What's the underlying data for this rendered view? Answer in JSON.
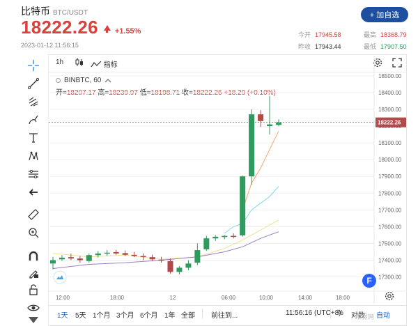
{
  "header": {
    "coin_name": "比特币",
    "pair": "BTC/USDT",
    "price": "18222.26",
    "change_pct": "+1.55%",
    "timestamp": "2023-01-12 11:56:15",
    "add_button": "+ 加自选",
    "stats": [
      {
        "label": "今开",
        "value": "17945.58",
        "color": "red"
      },
      {
        "label": "最高",
        "value": "18368.79",
        "color": "red"
      },
      {
        "label": "昨收",
        "value": "17943.44",
        "color": "plain"
      },
      {
        "label": "最低",
        "value": "17907.50",
        "color": "green"
      }
    ]
  },
  "toolbar_top": {
    "interval": "1h",
    "indicators_label": "指标"
  },
  "legend": {
    "symbol": "BINBTC, 60",
    "ohlc_prefix_open": "开=",
    "open": "18207.17",
    "ohlc_prefix_high": "高=",
    "high": "18239.97",
    "ohlc_prefix_low": "低=",
    "low": "18198.71",
    "ohlc_prefix_close": "收=",
    "close": "18222.26",
    "change": "+18.29 (+0.10%)"
  },
  "bottom_bar": {
    "ranges": [
      "1天",
      "5天",
      "1个月",
      "3个月",
      "6个月",
      "1年",
      "全部"
    ],
    "active_range": "1天",
    "goto": "前往到...",
    "clock": "11:56:16 (UTC+8)",
    "percent": "%",
    "log": "对数",
    "auto": "自动"
  },
  "watermark": "币界网",
  "icons": [
    "crosshair-icon",
    "trend-line-icon",
    "fib-icon",
    "brush-icon",
    "text-icon",
    "pattern-icon",
    "measure-icon",
    "back-arrow-icon",
    "ruler-icon",
    "zoom-in-icon",
    "magnet-icon",
    "lock-draw-icon",
    "lock-icon",
    "eye-icon",
    "settings-icon",
    "fullscreen-icon"
  ],
  "colors": {
    "up": "#2f9a5e",
    "down": "#b24a4a",
    "price_text": "#d9413d",
    "accent": "#1c4fa0",
    "ma1": "#f5a66a",
    "ma2": "#7fd7ea",
    "ma3": "#f2de8e",
    "ma4": "#9b7ec4"
  },
  "chart_data": {
    "type": "candlestick",
    "y_axis_labels": [
      "18500.00",
      "18400.00",
      "18300.00",
      "18200.00",
      "18100.00",
      "18000.00",
      "17900.00",
      "17800.00",
      "17700.00",
      "17600.00",
      "17500.00",
      "17400.00",
      "17300.00"
    ],
    "x_axis_labels": [
      "12:00",
      "18:00",
      "12",
      "06:00",
      "10:00",
      "14:00",
      "18:00"
    ],
    "ylim": [
      17240,
      18520
    ],
    "current_price_label": "18222.26",
    "candles": [
      {
        "o": 17380,
        "h": 17420,
        "l": 17345,
        "c": 17400
      },
      {
        "o": 17405,
        "h": 17430,
        "l": 17395,
        "c": 17415
      },
      {
        "o": 17418,
        "h": 17440,
        "l": 17400,
        "c": 17410
      },
      {
        "o": 17410,
        "h": 17425,
        "l": 17385,
        "c": 17400
      },
      {
        "o": 17395,
        "h": 17440,
        "l": 17385,
        "c": 17430
      },
      {
        "o": 17430,
        "h": 17455,
        "l": 17415,
        "c": 17440
      },
      {
        "o": 17440,
        "h": 17460,
        "l": 17425,
        "c": 17445
      },
      {
        "o": 17448,
        "h": 17462,
        "l": 17432,
        "c": 17440
      },
      {
        "o": 17442,
        "h": 17458,
        "l": 17425,
        "c": 17432
      },
      {
        "o": 17432,
        "h": 17450,
        "l": 17418,
        "c": 17425
      },
      {
        "o": 17425,
        "h": 17440,
        "l": 17400,
        "c": 17420
      },
      {
        "o": 17418,
        "h": 17433,
        "l": 17395,
        "c": 17405
      },
      {
        "o": 17403,
        "h": 17420,
        "l": 17385,
        "c": 17398
      },
      {
        "o": 17395,
        "h": 17410,
        "l": 17320,
        "c": 17330
      },
      {
        "o": 17330,
        "h": 17365,
        "l": 17315,
        "c": 17355
      },
      {
        "o": 17355,
        "h": 17400,
        "l": 17340,
        "c": 17380
      },
      {
        "o": 17385,
        "h": 17500,
        "l": 17370,
        "c": 17460
      },
      {
        "o": 17465,
        "h": 17545,
        "l": 17455,
        "c": 17530
      },
      {
        "o": 17530,
        "h": 17550,
        "l": 17515,
        "c": 17540
      },
      {
        "o": 17538,
        "h": 17550,
        "l": 17525,
        "c": 17545
      },
      {
        "o": 17545,
        "h": 17560,
        "l": 17530,
        "c": 17540
      },
      {
        "o": 17548,
        "h": 17905,
        "l": 17540,
        "c": 17900
      },
      {
        "o": 17900,
        "h": 18300,
        "l": 17850,
        "c": 18270
      },
      {
        "o": 18270,
        "h": 18295,
        "l": 18195,
        "c": 18230
      },
      {
        "o": 18200,
        "h": 18380,
        "l": 18150,
        "c": 18210
      },
      {
        "o": 18207,
        "h": 18240,
        "l": 18199,
        "c": 18222
      }
    ],
    "moving_averages": [
      {
        "color": "ma1",
        "points": [
          [
            21,
            17700
          ],
          [
            22,
            17860
          ],
          [
            23,
            17950
          ],
          [
            24,
            18060
          ],
          [
            25,
            18170
          ]
        ]
      },
      {
        "color": "ma2",
        "points": [
          [
            19,
            17560
          ],
          [
            20,
            17600
          ],
          [
            21,
            17620
          ],
          [
            22,
            17700
          ],
          [
            23,
            17740
          ],
          [
            24,
            17780
          ],
          [
            25,
            17840
          ]
        ]
      },
      {
        "color": "ma3",
        "points": [
          [
            0,
            17440
          ],
          [
            4,
            17420
          ],
          [
            8,
            17430
          ],
          [
            12,
            17405
          ],
          [
            16,
            17420
          ],
          [
            19,
            17470
          ],
          [
            21,
            17520
          ],
          [
            23,
            17580
          ],
          [
            25,
            17640
          ]
        ]
      },
      {
        "color": "ma4",
        "points": [
          [
            0,
            17350
          ],
          [
            4,
            17375
          ],
          [
            8,
            17385
          ],
          [
            12,
            17400
          ],
          [
            16,
            17420
          ],
          [
            19,
            17450
          ],
          [
            21,
            17480
          ],
          [
            23,
            17530
          ],
          [
            25,
            17570
          ]
        ]
      }
    ]
  }
}
